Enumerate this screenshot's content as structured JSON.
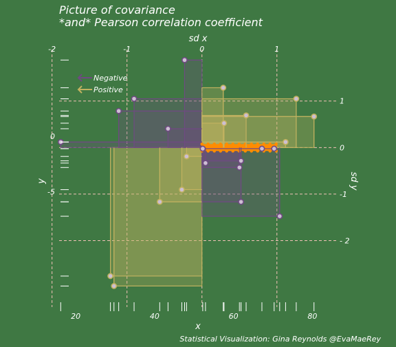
{
  "chart_data": {
    "type": "scatter",
    "title": "Picture of covariance",
    "subtitle": "*and* Pearson correlation coefficient",
    "xlabel": "x",
    "ylabel": "y",
    "top_axis_label": "sd x",
    "right_axis_label": "sd y",
    "caption": "Statistical Visualization: Gina Reynolds @EvaMaeRey",
    "legend_position": "top-left",
    "legend": [
      {
        "name": "Negative",
        "color": "#6f4a82"
      },
      {
        "name": "Positive",
        "color": "#c2b260"
      }
    ],
    "colors": {
      "background": "#3f7843",
      "negative": "#6f4a82",
      "positive": "#c2b260",
      "point_fill": "#cdbfd3",
      "sd_lines": "#f3c2b8",
      "mean_bar": "#ff8c00",
      "text": "#ffffff"
    },
    "x_ticks": [
      20,
      40,
      60,
      80
    ],
    "y_ticks": [
      -5,
      0
    ],
    "sd_x_ticks": [
      -2,
      -1,
      0,
      1
    ],
    "sd_y_ticks": [
      -2,
      -1,
      0,
      1
    ],
    "sd_x_tick_labels": [
      "-2",
      "-1",
      "0",
      "1"
    ],
    "sd_y_tick_labels": [
      "- 2",
      "-1",
      "0",
      "1"
    ],
    "mean_x": 52.0,
    "mean_y": -1.0,
    "sd_x": 19.0,
    "sd_y": 4.2,
    "xlim": [
      15.8,
      86.2
    ],
    "ylim": [
      -15.4,
      7.1
    ],
    "points": [
      {
        "x": 28.8,
        "y": -12.6
      },
      {
        "x": 29.7,
        "y": -13.5
      },
      {
        "x": 30.9,
        "y": 2.3
      },
      {
        "x": 34.8,
        "y": 3.4
      },
      {
        "x": 41.3,
        "y": -5.9
      },
      {
        "x": 43.4,
        "y": 0.7
      },
      {
        "x": 46.9,
        "y": -4.8
      },
      {
        "x": 47.6,
        "y": 6.9
      },
      {
        "x": 48.1,
        "y": -1.8
      },
      {
        "x": 52.2,
        "y": -1.1
      },
      {
        "x": 52.9,
        "y": -2.4
      },
      {
        "x": 57.4,
        "y": 4.4
      },
      {
        "x": 57.6,
        "y": 1.2
      },
      {
        "x": 61.5,
        "y": -2.8
      },
      {
        "x": 61.9,
        "y": -5.9
      },
      {
        "x": 61.9,
        "y": -2.2
      },
      {
        "x": 63.2,
        "y": 1.9
      },
      {
        "x": 67.2,
        "y": -1.1
      },
      {
        "x": 70.3,
        "y": -1.1
      },
      {
        "x": 71.7,
        "y": -7.2
      },
      {
        "x": 73.2,
        "y": -0.5
      },
      {
        "x": 75.9,
        "y": 3.4
      },
      {
        "x": 80.4,
        "y": 1.8
      },
      {
        "x": 16.2,
        "y": -0.5
      }
    ]
  }
}
